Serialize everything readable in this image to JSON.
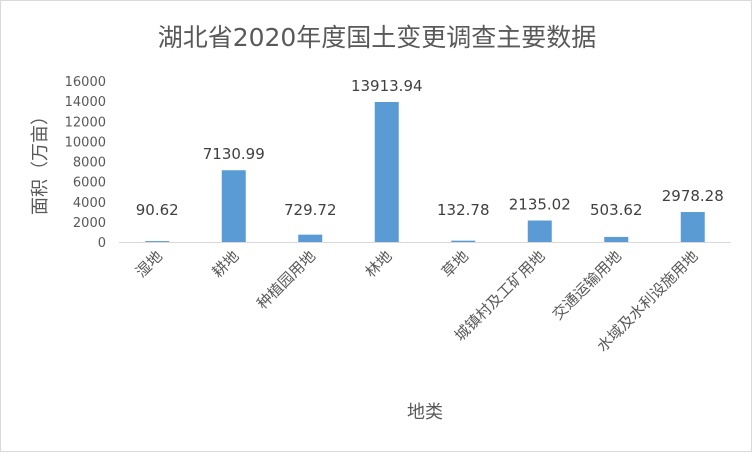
{
  "chart_data": {
    "type": "bar",
    "title": "湖北省2020年度国土变更调查主要数据",
    "xlabel": "地类",
    "ylabel": "面积（万亩）",
    "categories": [
      "湿地",
      "耕地",
      "种植园用地",
      "林地",
      "草地",
      "城镇村及工矿用地",
      "交通运输用地",
      "水域及水利设施用地"
    ],
    "series": [
      {
        "values": [
          90.62,
          7130.99,
          729.72,
          13913.94,
          132.78,
          2135.02,
          503.62,
          2978.28
        ]
      }
    ],
    "data_labels": [
      "90.62",
      "7130.99",
      "729.72",
      "13913.94",
      "132.78",
      "2135.02",
      "503.62",
      "2978.28"
    ],
    "ylim": [
      0,
      16000
    ],
    "yticks": [
      0,
      2000,
      4000,
      6000,
      8000,
      10000,
      12000,
      14000,
      16000
    ],
    "ytick_labels": [
      "0",
      "2000",
      "4000",
      "6000",
      "8000",
      "10000",
      "12000",
      "14000",
      "16000"
    ],
    "grid": false,
    "legend": "none",
    "bar_color": "#5b9bd5"
  }
}
